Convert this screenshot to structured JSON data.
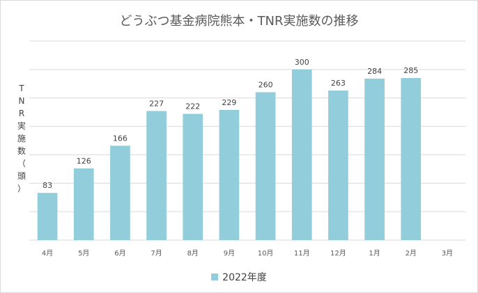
{
  "chart_data": {
    "type": "bar",
    "title": "どうぶつ基金病院熊本・TNR実施数の推移",
    "ylabel": "TNR実施数（頭）",
    "categories": [
      "4月",
      "5月",
      "6月",
      "7月",
      "8月",
      "9月",
      "10月",
      "11月",
      "12月",
      "1月",
      "2月",
      "3月"
    ],
    "series": [
      {
        "name": "2022年度",
        "values": [
          83,
          126,
          166,
          227,
          222,
          229,
          260,
          300,
          263,
          284,
          285,
          null
        ]
      }
    ],
    "ylim": [
      0,
      350
    ],
    "grid": true,
    "legend": "bottom",
    "bar_color": "#92cddc",
    "grid_color": "#d9d9d9"
  }
}
